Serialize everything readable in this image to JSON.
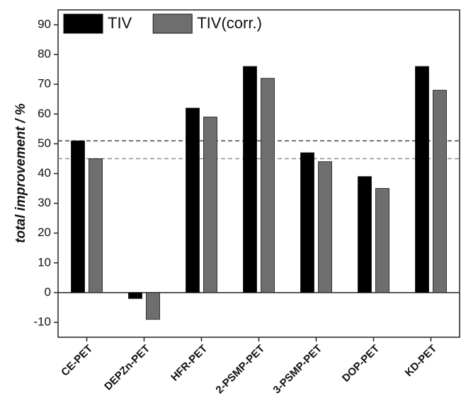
{
  "chart_data": {
    "type": "bar",
    "y_label": "total improvement / %",
    "categories": [
      "CE-PET",
      "DEPZn-PET",
      "HFR-PET",
      "2-PSMP-PET",
      "3-PSMP-PET",
      "DOP-PET",
      "KD-PET"
    ],
    "series": [
      {
        "name": "TIV",
        "color": "#000000",
        "values": [
          51,
          -2,
          62,
          76,
          47,
          39,
          76
        ]
      },
      {
        "name": "TIV(corr.)",
        "color": "#6e6e6e",
        "values": [
          45,
          -9,
          59,
          72,
          44,
          35,
          68
        ]
      }
    ],
    "hlines": [
      {
        "value": 51,
        "color": "#333333"
      },
      {
        "value": 45,
        "color": "#888888"
      }
    ],
    "ylim": [
      -15,
      95
    ],
    "yticks": [
      -10,
      0,
      10,
      20,
      30,
      40,
      50,
      60,
      70,
      80,
      90
    ],
    "legend": "top-left"
  }
}
